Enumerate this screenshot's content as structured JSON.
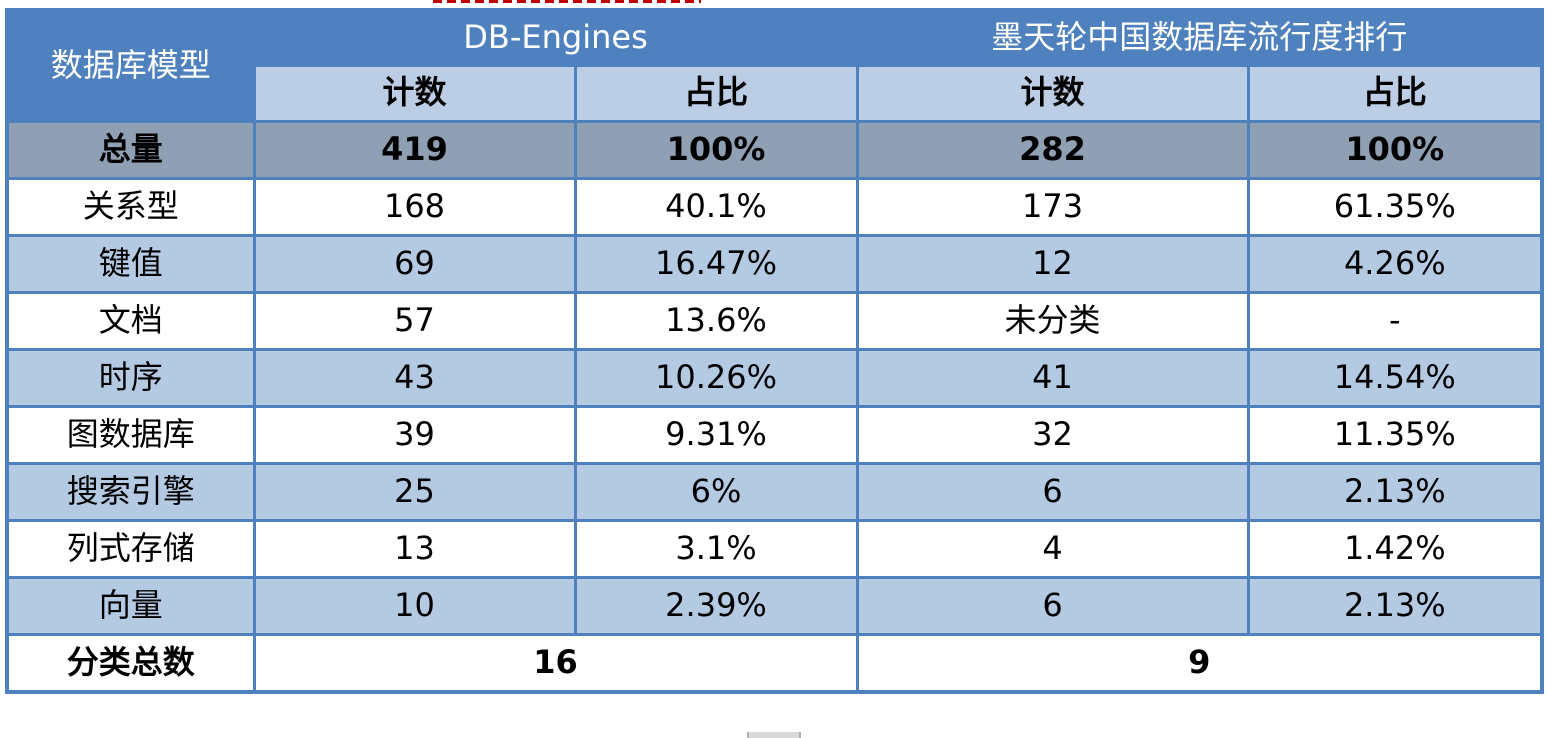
{
  "chart_data": {
    "type": "table",
    "corner_header": "数据库模型",
    "group_headers": [
      {
        "label": "DB-Engines"
      },
      {
        "label": "墨天轮中国数据库流行度排行"
      }
    ],
    "sub_headers": [
      "计数",
      "占比",
      "计数",
      "占比"
    ],
    "rows": [
      {
        "label": "总量",
        "values": [
          "419",
          "100%",
          "282",
          "100%"
        ],
        "emphasis": "total"
      },
      {
        "label": "关系型",
        "values": [
          "168",
          "40.1%",
          "173",
          "61.35%"
        ]
      },
      {
        "label": "键值",
        "values": [
          "69",
          "16.47%",
          "12",
          "4.26%"
        ]
      },
      {
        "label": "文档",
        "values": [
          "57",
          "13.6%",
          "未分类",
          "-"
        ]
      },
      {
        "label": "时序",
        "values": [
          "43",
          "10.26%",
          "41",
          "14.54%"
        ]
      },
      {
        "label": "图数据库",
        "values": [
          "39",
          "9.31%",
          "32",
          "11.35%"
        ]
      },
      {
        "label": "搜索引擎",
        "values": [
          "25",
          "6%",
          "6",
          "2.13%"
        ]
      },
      {
        "label": "列式存储",
        "values": [
          "13",
          "3.1%",
          "4",
          "1.42%"
        ]
      },
      {
        "label": "向量",
        "values": [
          "10",
          "2.39%",
          "6",
          "2.13%"
        ]
      }
    ],
    "footer": {
      "label": "分类总数",
      "values": [
        "16",
        "9"
      ]
    }
  },
  "colors": {
    "header_blue": "#4e81bd",
    "subheader_light_blue": "#bccee6",
    "band_light_blue": "#b4c9e2",
    "total_row_gray": "#8fa0b4",
    "border_blue": "#4e81bd",
    "text": "#000000",
    "artifact_red": "#c00000"
  }
}
